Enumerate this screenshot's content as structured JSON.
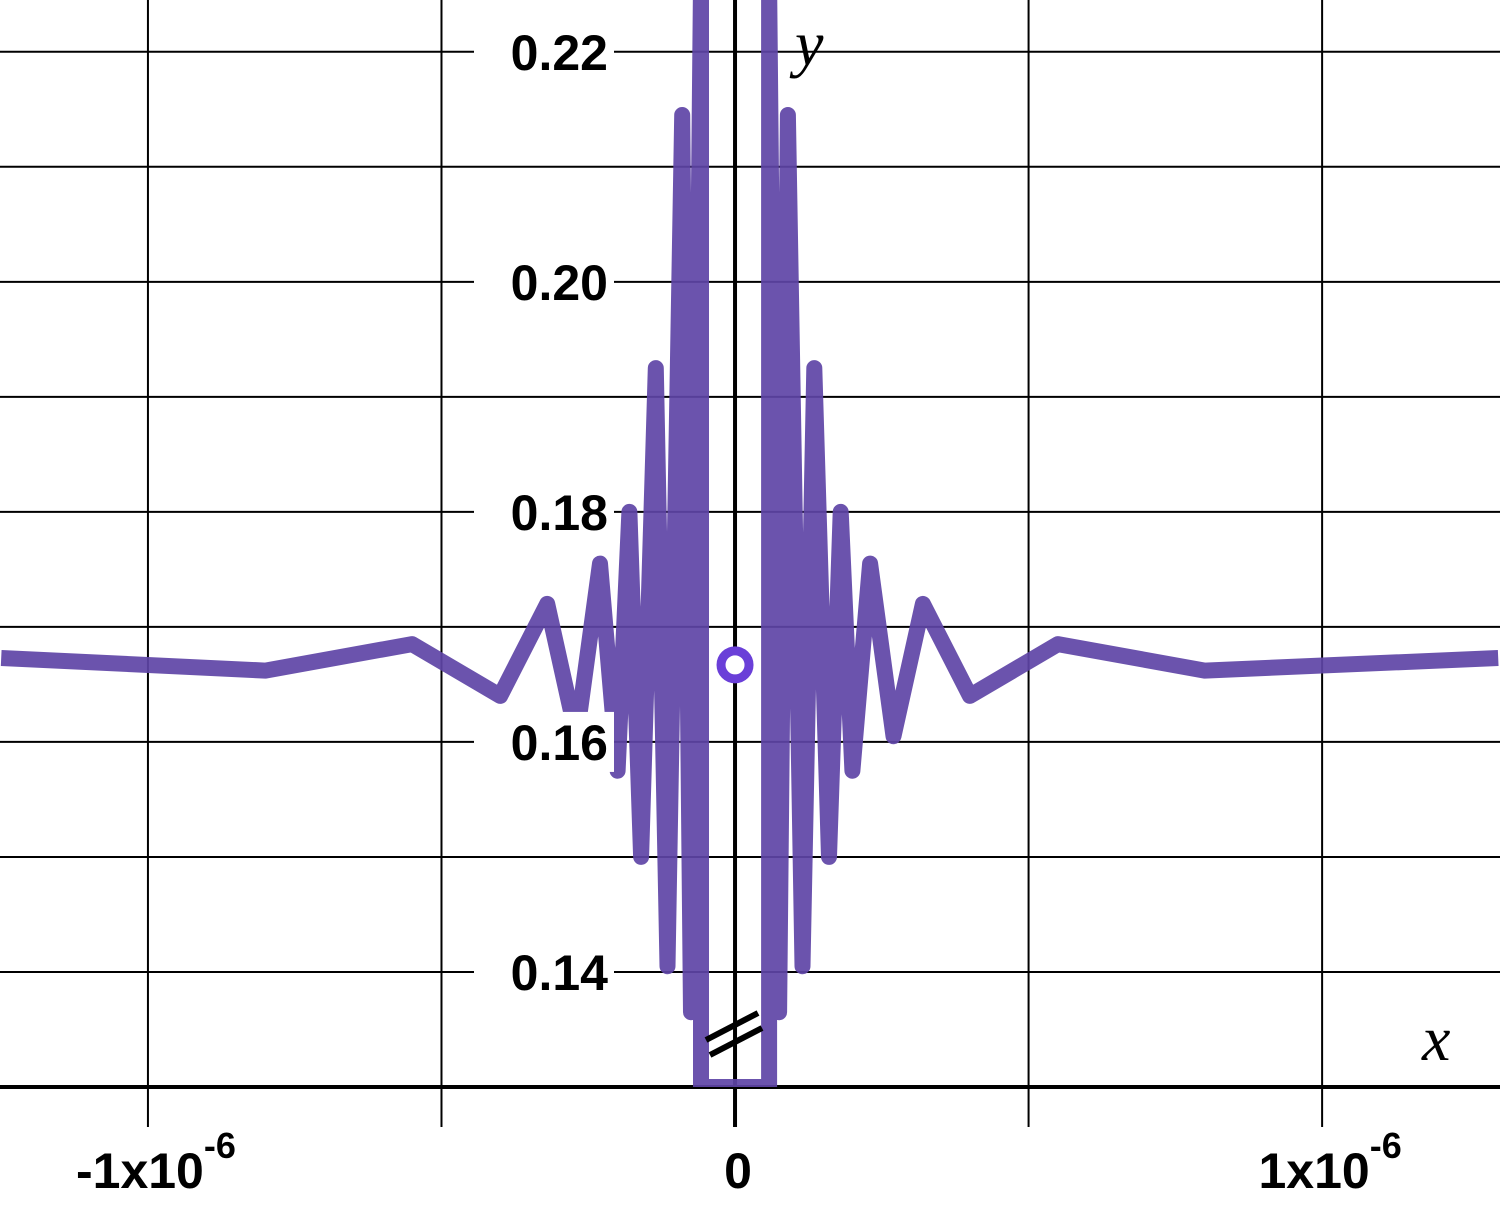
{
  "chart_data": {
    "type": "line",
    "xlabel": "x",
    "ylabel": "y",
    "xlim": [
      -1.252e-06,
      1.303e-06
    ],
    "ylim": [
      0.13,
      0.2245
    ],
    "xticks": [
      {
        "value": -1e-06,
        "label": "-1x10",
        "exponent": "-6"
      },
      0,
      {
        "value": 1e-06,
        "label": "1x10",
        "exponent": "-6"
      }
    ],
    "xminor": [
      -5e-07,
      5e-07
    ],
    "yticks": [
      0.14,
      0.16,
      0.18,
      {
        "value": 0.2,
        "label": "0.20"
      },
      0.22
    ],
    "yminor": [
      0.15,
      0.17,
      0.19,
      0.21
    ],
    "grid": true,
    "series": [
      {
        "color": "#5e44a6",
        "x": [
          -1.25e-06,
          -8e-07,
          -5.5e-07,
          -4e-07,
          -3.2e-07,
          -2.7e-07,
          -2.3e-07,
          -2e-07,
          -1.8e-07,
          -1.6e-07,
          -1.35e-07,
          -1.15e-07,
          -9e-08,
          -7.5e-08,
          -5.8e-08,
          -5.8e-08,
          5.8e-08,
          5.8e-08,
          7.5e-08,
          9e-08,
          1.15e-07,
          1.35e-07,
          1.6e-07,
          1.8e-07,
          2e-07,
          2.3e-07,
          2.7e-07,
          3.2e-07,
          4e-07,
          5.5e-07,
          8e-07,
          1.3e-06
        ],
        "values": [
          0.1673,
          0.1662,
          0.1685,
          0.164,
          0.172,
          0.1605,
          0.1755,
          0.1575,
          0.18,
          0.15,
          0.1925,
          0.1405,
          0.2145,
          0.1365,
          0.226,
          0.13,
          0.13,
          0.226,
          0.1365,
          0.2145,
          0.1405,
          0.1925,
          0.15,
          0.18,
          0.1575,
          0.1755,
          0.1605,
          0.172,
          0.164,
          0.1685,
          0.1662,
          0.1673
        ]
      }
    ],
    "hole": {
      "x": 0,
      "y": 0.1667
    }
  }
}
